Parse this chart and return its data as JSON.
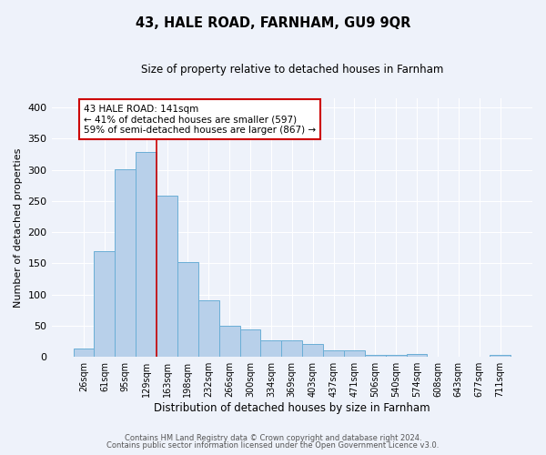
{
  "title": "43, HALE ROAD, FARNHAM, GU9 9QR",
  "subtitle": "Size of property relative to detached houses in Farnham",
  "xlabel": "Distribution of detached houses by size in Farnham",
  "ylabel": "Number of detached properties",
  "footnote1": "Contains HM Land Registry data © Crown copyright and database right 2024.",
  "footnote2": "Contains public sector information licensed under the Open Government Licence v3.0.",
  "categories": [
    "26sqm",
    "61sqm",
    "95sqm",
    "129sqm",
    "163sqm",
    "198sqm",
    "232sqm",
    "266sqm",
    "300sqm",
    "334sqm",
    "369sqm",
    "403sqm",
    "437sqm",
    "471sqm",
    "506sqm",
    "540sqm",
    "574sqm",
    "608sqm",
    "643sqm",
    "677sqm",
    "711sqm"
  ],
  "values": [
    13,
    170,
    301,
    328,
    259,
    152,
    91,
    50,
    44,
    26,
    26,
    21,
    11,
    10,
    3,
    3,
    4,
    1,
    1,
    0,
    3
  ],
  "bar_color": "#b8d0ea",
  "bar_edge_color": "#6aaed6",
  "bg_color": "#eef2fa",
  "grid_color": "#ffffff",
  "vline_color": "#cc0000",
  "annotation_text": "43 HALE ROAD: 141sqm\n← 41% of detached houses are smaller (597)\n59% of semi-detached houses are larger (867) →",
  "annotation_box_color": "#ffffff",
  "annotation_box_edge": "#cc0000",
  "ylim": [
    0,
    415
  ],
  "yticks": [
    0,
    50,
    100,
    150,
    200,
    250,
    300,
    350,
    400
  ]
}
